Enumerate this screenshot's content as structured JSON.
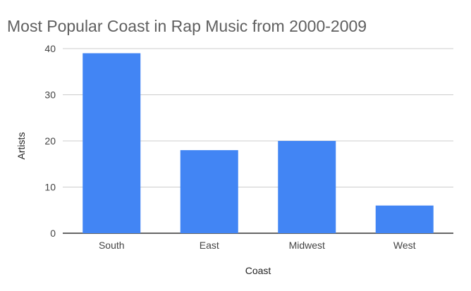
{
  "chart_data": {
    "type": "bar",
    "title": "Most Popular Coast in Rap Music from 2000-2009",
    "xlabel": "Coast",
    "ylabel": "Artists",
    "categories": [
      "South",
      "East",
      "Midwest",
      "West"
    ],
    "values": [
      39,
      18,
      20,
      6
    ],
    "ylim": [
      0,
      40
    ],
    "yticks": [
      0,
      10,
      20,
      30,
      40
    ],
    "grid": true,
    "bar_color": "#4285f4"
  }
}
